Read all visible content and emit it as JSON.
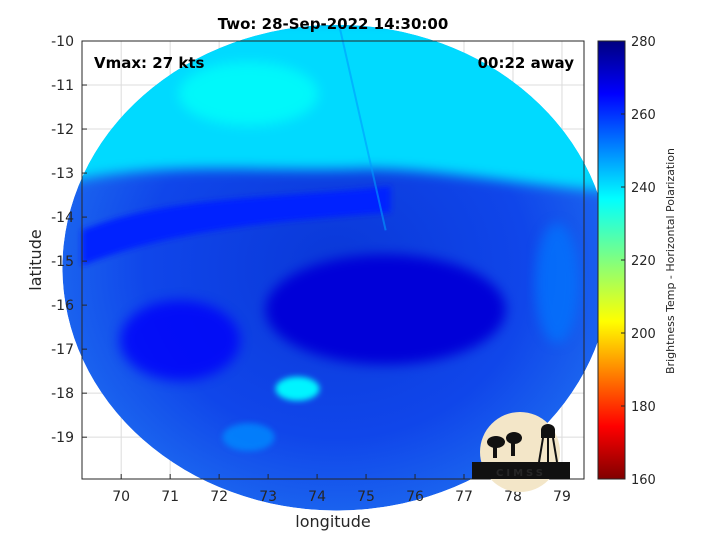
{
  "chart_data": {
    "type": "heatmap",
    "title": "Two: 28-Sep-2022 14:30:00",
    "xlabel": "longitude",
    "ylabel": "latitude",
    "xlim": [
      69.2,
      79.45
    ],
    "ylim": [
      -19.95,
      -10
    ],
    "x_ticks": [
      70,
      71,
      72,
      73,
      74,
      75,
      76,
      77,
      78,
      79
    ],
    "y_ticks": [
      -10,
      -11,
      -12,
      -13,
      -14,
      -15,
      -16,
      -17,
      -18,
      -19
    ],
    "grid": true,
    "annotations": {
      "vmax": "Vmax: 27 kts",
      "time_away": "00:22 away"
    },
    "colorbar": {
      "label": "Brightness Temp - Horizontal Polarization",
      "range": [
        160,
        280
      ],
      "ticks": [
        160,
        180,
        200,
        220,
        240,
        260,
        280
      ],
      "colormap": "jet"
    },
    "swath": {
      "center_lon": 74.4,
      "center_lat": -15.15,
      "radius_deg": 5.6,
      "regions": [
        {
          "name": "northern clear area",
          "value": 241
        },
        {
          "name": "convective band near 13-14S",
          "value": 262
        },
        {
          "name": "storm core near 75-76E, 16S",
          "value": 270
        },
        {
          "name": "southern cells near 73.5E, 18S",
          "value": 238
        }
      ]
    },
    "logo_text": "CIMSS"
  }
}
